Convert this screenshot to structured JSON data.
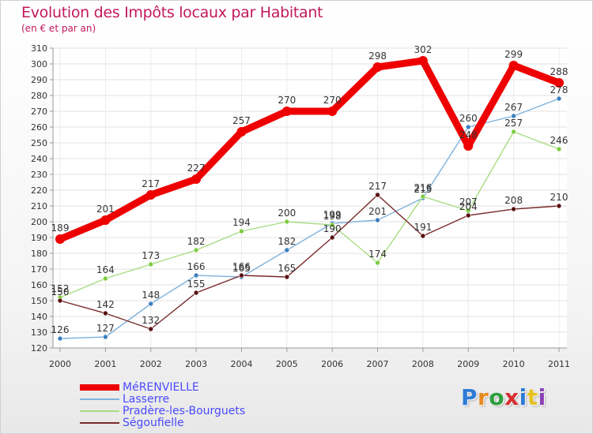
{
  "header": {
    "title": "Evolution des Impôts locaux par Habitant",
    "subtitle": "(en € et par an)"
  },
  "colors": {
    "title": "#c2185b",
    "legend_text": "#4a4aff",
    "grid": "#e2e2e2"
  },
  "chart_data": {
    "type": "line",
    "title": "Evolution des Impôts locaux par Habitant",
    "subtitle": "(en € et par an)",
    "x": [
      "2000",
      "2001",
      "2002",
      "2003",
      "2004",
      "2005",
      "2006",
      "2007",
      "2008",
      "2009",
      "2010",
      "2011"
    ],
    "ylim": [
      120,
      310
    ],
    "yticks": [
      120,
      130,
      140,
      150,
      160,
      170,
      180,
      190,
      200,
      210,
      220,
      230,
      240,
      250,
      260,
      270,
      280,
      290,
      300,
      310
    ],
    "grid": true,
    "legend_position": "bottom-left",
    "series": [
      {
        "name": "MéRENVIELLE",
        "color": "#ee0000",
        "thick": true,
        "values": [
          189,
          201,
          217,
          227,
          257,
          270,
          270,
          298,
          302,
          248,
          299,
          288
        ],
        "labels": [
          "189",
          "201",
          "217",
          "227",
          "257",
          "270",
          "270",
          "298",
          "302",
          "248",
          "299",
          "288"
        ]
      },
      {
        "name": "Lasserre",
        "color": "#7fb2dc",
        "marker": "#3b7fc0",
        "thick": false,
        "values": [
          126,
          127,
          148,
          166,
          165,
          182,
          199,
          201,
          215,
          260,
          267,
          278
        ],
        "labels": [
          "126",
          "127",
          "148",
          "166",
          "165",
          "182",
          "199",
          "201",
          "215",
          "260",
          "267",
          "278"
        ]
      },
      {
        "name": "Pradère-les-Bourguets",
        "color": "#a8dc80",
        "marker": "#7fcc44",
        "thick": false,
        "values": [
          152,
          164,
          173,
          182,
          194,
          200,
          198,
          174,
          216,
          207,
          257,
          246
        ],
        "labels": [
          "152",
          "164",
          "173",
          "182",
          "194",
          "200",
          "198",
          "174",
          "216",
          "207",
          "257",
          "246"
        ]
      },
      {
        "name": "Ségoufielle",
        "color": "#7a2a2a",
        "marker": "#5a1212",
        "thick": false,
        "values": [
          150,
          142,
          132,
          155,
          166,
          165,
          190,
          217,
          191,
          204,
          208,
          210
        ],
        "labels": [
          "150",
          "142",
          "132",
          "155",
          "166",
          "165",
          "190",
          "217",
          "191",
          "204",
          "208",
          "210"
        ]
      }
    ]
  },
  "legend": {
    "items": [
      {
        "label": "MéRENVIELLE"
      },
      {
        "label": "Lasserre"
      },
      {
        "label": "Pradère-les-Bourguets"
      },
      {
        "label": "Ségoufielle"
      }
    ]
  },
  "logo": {
    "text": "Proxiti",
    "letter_colors": [
      "#2e7bd6",
      "#e58a1f",
      "#2e9e3f",
      "#d62e2e",
      "#2e7bd6",
      "#e5c21f",
      "#8b3fb5"
    ]
  }
}
